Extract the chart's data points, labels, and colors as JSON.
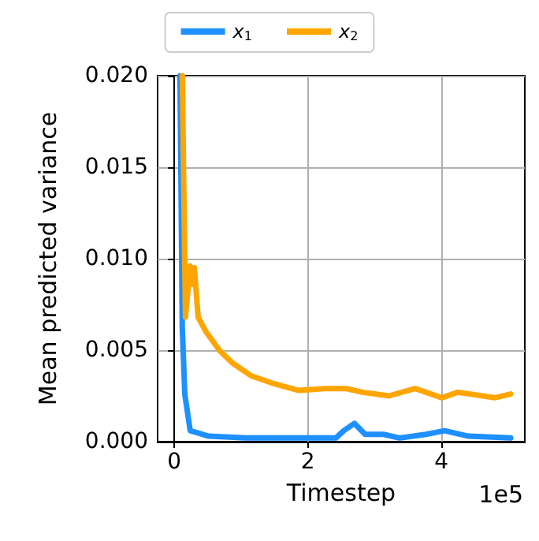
{
  "chart_data": {
    "type": "line",
    "xlabel": "Timestep",
    "ylabel": "Mean predicted variance",
    "annotations": [
      "1e5"
    ],
    "xlim": [
      -0.25,
      5.25
    ],
    "xticks": [
      0,
      2,
      4
    ],
    "ylim": [
      0,
      0.02
    ],
    "yticks": [
      {
        "value": 0,
        "label": "0.000"
      },
      {
        "value": 0.005,
        "label": "0.005"
      },
      {
        "value": 0.01,
        "label": "0.010"
      },
      {
        "value": 0.015,
        "label": "0.015"
      },
      {
        "value": 0.02,
        "label": "0.020"
      }
    ],
    "grid": true,
    "legend": "top",
    "marker": "none",
    "line_style": "solid",
    "series": [
      {
        "name": "x$_{1}$",
        "color": "#1e90ff",
        "x": [
          0.086,
          0.119,
          0.157,
          0.238,
          0.514,
          1.07,
          1.864,
          2.42,
          2.538,
          2.698,
          2.857,
          3.133,
          3.371,
          3.769,
          4.048,
          4.405,
          5.038
        ],
        "values": [
          0.02,
          0.0063,
          0.0026,
          0.0006,
          0.0003,
          0.0002,
          0.0002,
          0.0002,
          0.0006,
          0.001,
          0.0004,
          0.0004,
          0.0002,
          0.0004,
          0.0006,
          0.0003,
          0.0002
        ]
      },
      {
        "name": "x$_{2}$",
        "color": "#ffa500",
        "x": [
          0.12,
          0.167,
          0.238,
          0.276,
          0.3,
          0.357,
          0.476,
          0.674,
          0.87,
          1.15,
          1.466,
          1.864,
          2.26,
          2.579,
          2.817,
          3.214,
          3.61,
          4.007,
          4.245,
          4.8,
          5.038
        ],
        "values": [
          0.02,
          0.0068,
          0.0096,
          0.0086,
          0.0095,
          0.0068,
          0.006,
          0.005,
          0.0043,
          0.0036,
          0.0032,
          0.0028,
          0.0029,
          0.0029,
          0.0027,
          0.0025,
          0.0029,
          0.0024,
          0.0027,
          0.0024,
          0.0026
        ]
      }
    ]
  }
}
